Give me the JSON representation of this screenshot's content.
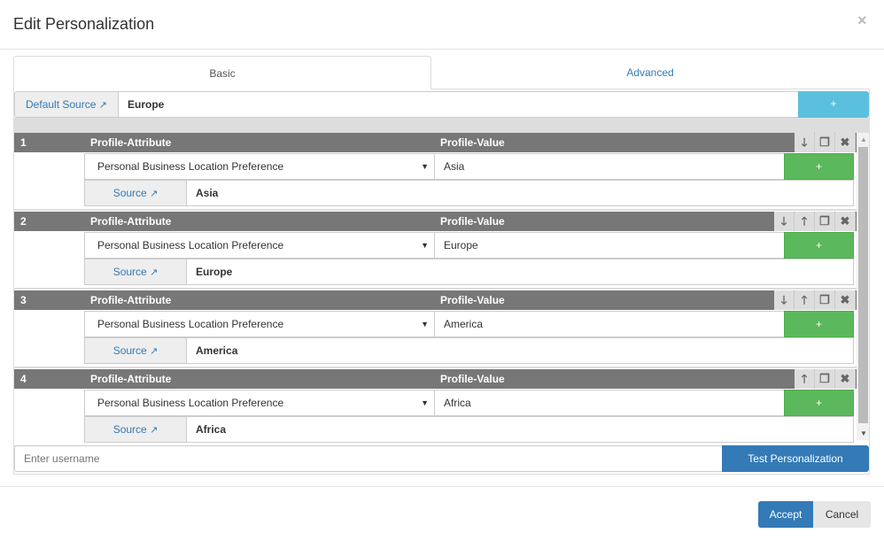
{
  "dialog": {
    "title": "Edit Personalization",
    "close": "×"
  },
  "tabs": [
    {
      "label": "Basic",
      "active": true
    },
    {
      "label": "Advanced",
      "active": false
    }
  ],
  "default_source": {
    "label": "Default Source",
    "value": "Europe",
    "add": "+"
  },
  "columns": {
    "attribute": "Profile-Attribute",
    "value": "Profile-Value"
  },
  "rows": [
    {
      "num": "1",
      "attribute": "Personal Business Location Preference",
      "value": "Asia",
      "source_label": "Source",
      "source": "Asia",
      "add": "+",
      "actions": [
        "move-down",
        "duplicate",
        "remove"
      ]
    },
    {
      "num": "2",
      "attribute": "Personal Business Location Preference",
      "value": "Europe",
      "source_label": "Source",
      "source": "Europe",
      "add": "+",
      "actions": [
        "move-down",
        "move-up",
        "duplicate",
        "remove"
      ]
    },
    {
      "num": "3",
      "attribute": "Personal Business Location Preference",
      "value": "America",
      "source_label": "Source",
      "source": "America",
      "add": "+",
      "actions": [
        "move-down",
        "move-up",
        "duplicate",
        "remove"
      ]
    },
    {
      "num": "4",
      "attribute": "Personal Business Location Preference",
      "value": "Africa",
      "source_label": "Source",
      "source": "Africa",
      "add": "+",
      "actions": [
        "move-up",
        "duplicate",
        "remove"
      ]
    }
  ],
  "test": {
    "placeholder": "Enter username",
    "button": "Test Personalization"
  },
  "footer": {
    "accept": "Accept",
    "cancel": "Cancel"
  },
  "colors": {
    "primary": "#337ab7",
    "info": "#5bc0de",
    "success": "#5cb85c",
    "row_header": "#777777"
  }
}
